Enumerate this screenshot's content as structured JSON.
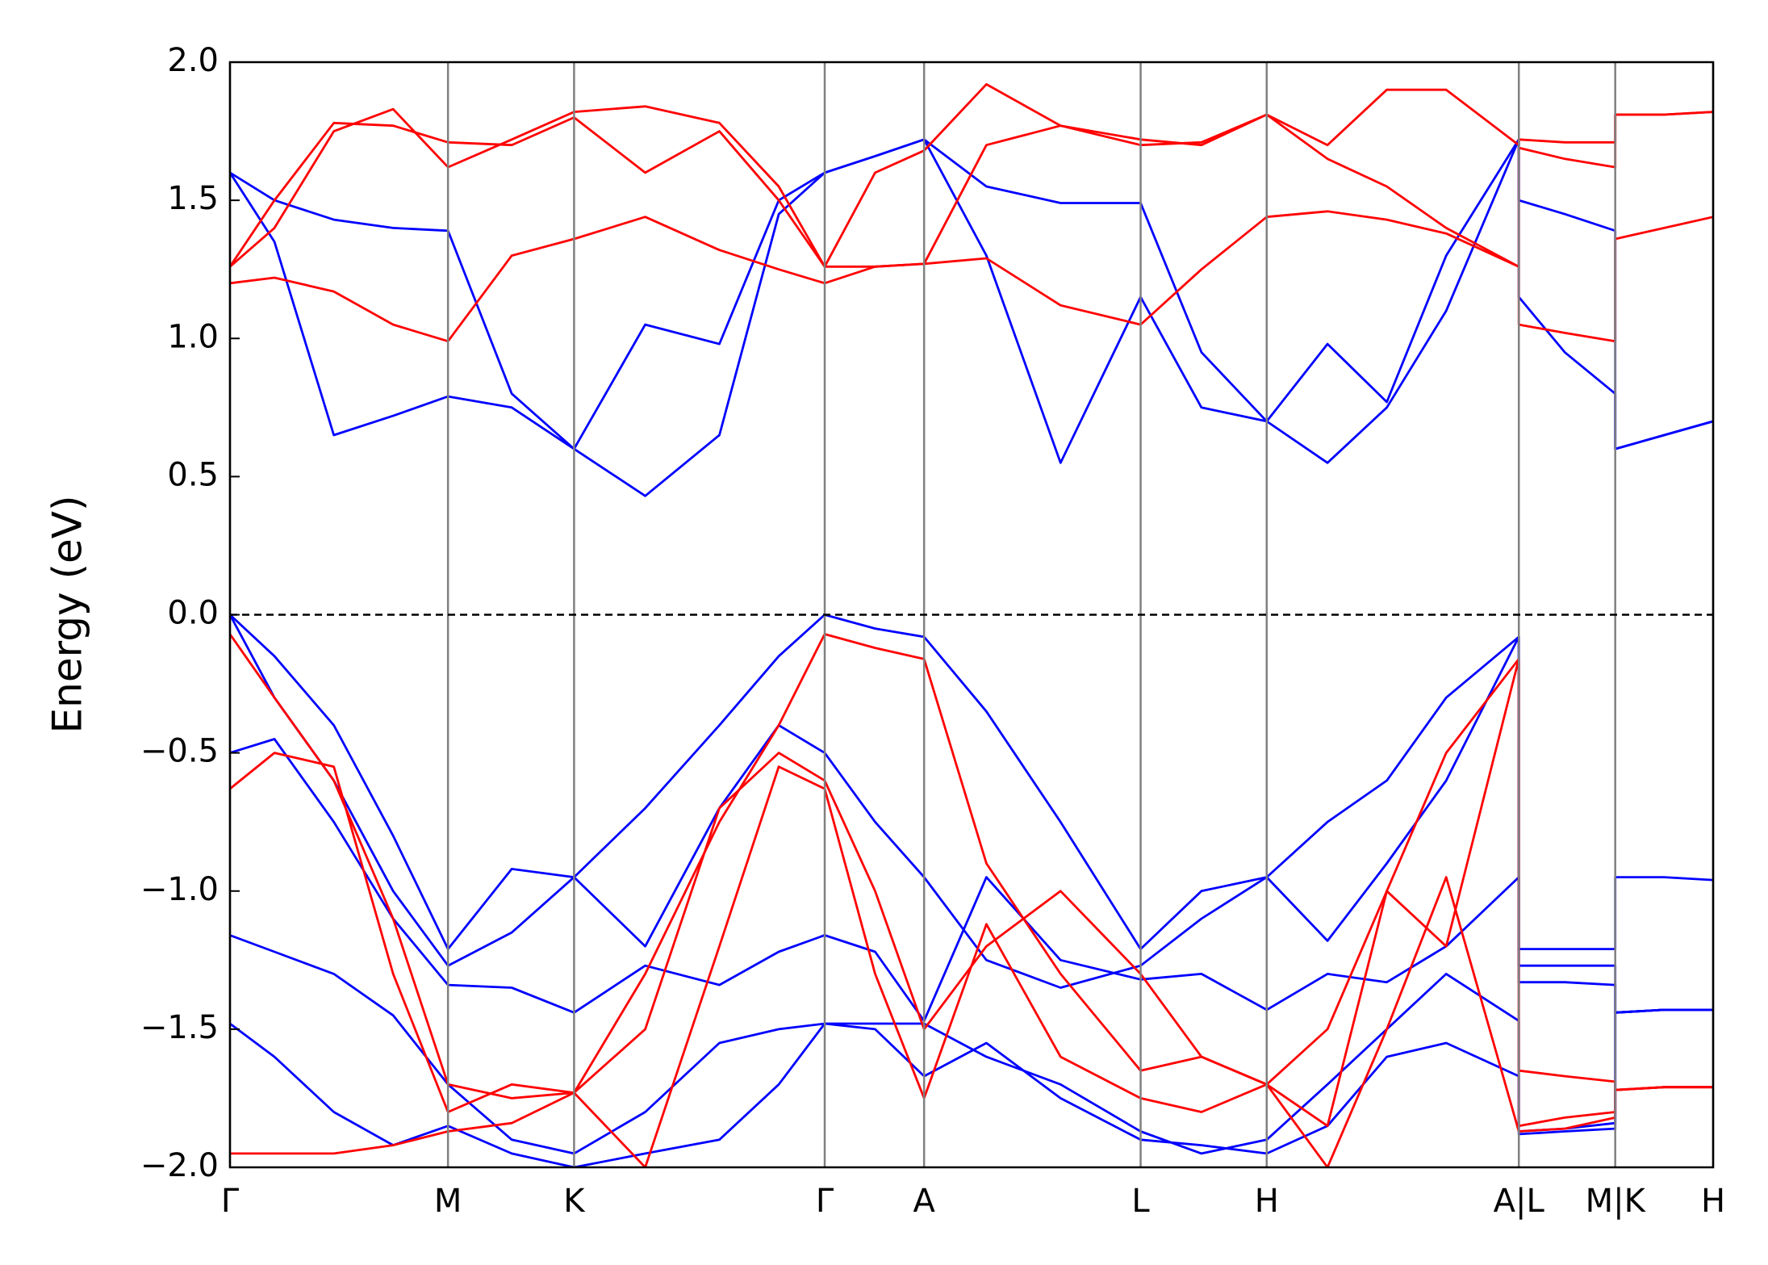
{
  "chart_data": {
    "type": "line",
    "ylabel": "Energy (eV)",
    "x": [
      0,
      0.03,
      0.07,
      0.11,
      0.147,
      0.19,
      0.232,
      0.28,
      0.33,
      0.37,
      0.401,
      0.435,
      0.468,
      0.51,
      0.56,
      0.614,
      0.655,
      0.699,
      0.74,
      0.78,
      0.82,
      0.869,
      0.869,
      0.9,
      0.934,
      0.934,
      0.967,
      1.0
    ],
    "xlim": [
      0,
      1
    ],
    "xticks": [
      {
        "value": 0,
        "label": "Γ"
      },
      {
        "value": 0.147,
        "label": "M"
      },
      {
        "value": 0.232,
        "label": "K"
      },
      {
        "value": 0.401,
        "label": "Γ"
      },
      {
        "value": 0.468,
        "label": "A"
      },
      {
        "value": 0.614,
        "label": "L"
      },
      {
        "value": 0.699,
        "label": "H"
      },
      {
        "value": 0.869,
        "label": "A|L"
      },
      {
        "value": 0.934,
        "label": "M|K"
      },
      {
        "value": 1.0,
        "label": "H"
      }
    ],
    "ylim": [
      -2,
      2
    ],
    "yticks": [
      {
        "value": -2,
        "label": "−2.0"
      },
      {
        "value": -1.5,
        "label": "−1.5"
      },
      {
        "value": -1,
        "label": "−1.0"
      },
      {
        "value": -0.5,
        "label": "−0.5"
      },
      {
        "value": 0,
        "label": "0.0"
      },
      0.5,
      {
        "value": 1,
        "label": "1.0"
      },
      1.5,
      {
        "value": 2,
        "label": "2.0"
      }
    ],
    "fermi_level": 0,
    "series": [
      {
        "color": "#0000ff",
        "values": [
          1.6,
          1.35,
          0.65,
          0.72,
          0.79,
          0.75,
          0.6,
          0.43,
          0.65,
          1.45,
          1.6,
          1.66,
          1.72,
          1.3,
          0.55,
          1.15,
          0.75,
          0.7,
          0.55,
          0.75,
          1.1,
          1.72,
          1.15,
          0.95,
          0.8,
          0.6,
          0.65,
          0.7
        ]
      },
      {
        "color": "#0000ff",
        "values": [
          1.6,
          1.5,
          1.43,
          1.4,
          1.39,
          0.8,
          0.6,
          1.05,
          0.98,
          1.5,
          1.6,
          1.66,
          1.72,
          1.55,
          1.49,
          1.49,
          0.95,
          0.7,
          0.98,
          0.77,
          1.3,
          1.72,
          1.5,
          1.45,
          1.39,
          0.6,
          0.65,
          0.7
        ]
      },
      {
        "color": "#ff0000",
        "values": [
          1.2,
          1.22,
          1.17,
          1.05,
          0.99,
          1.3,
          1.36,
          1.44,
          1.32,
          1.25,
          1.2,
          1.26,
          1.27,
          1.29,
          1.12,
          1.05,
          1.25,
          1.44,
          1.46,
          1.43,
          1.38,
          1.26,
          1.05,
          1.02,
          0.99,
          1.36,
          1.4,
          1.44
        ]
      },
      {
        "color": "#ff0000",
        "values": [
          1.26,
          1.5,
          1.78,
          1.77,
          1.71,
          1.7,
          1.8,
          1.6,
          1.75,
          1.5,
          1.26,
          1.26,
          1.27,
          1.7,
          1.77,
          1.7,
          1.71,
          1.81,
          1.65,
          1.55,
          1.4,
          1.26,
          1.69,
          1.65,
          1.62,
          1.81,
          1.81,
          1.82
        ]
      },
      {
        "color": "#ff0000",
        "values": [
          1.26,
          1.4,
          1.75,
          1.83,
          1.62,
          1.72,
          1.82,
          1.84,
          1.78,
          1.55,
          1.26,
          1.6,
          1.68,
          1.92,
          1.77,
          1.72,
          1.7,
          1.81,
          1.7,
          1.9,
          1.9,
          1.7,
          1.72,
          1.71,
          1.71,
          1.81,
          1.81,
          1.82
        ]
      },
      {
        "color": "#0000ff",
        "values": [
          0,
          -0.15,
          -0.4,
          -0.8,
          -1.21,
          -0.92,
          -0.95,
          -0.7,
          -0.4,
          -0.15,
          0,
          -0.05,
          -0.08,
          -0.35,
          -0.75,
          -1.21,
          -1.0,
          -0.95,
          -0.75,
          -0.6,
          -0.3,
          -0.08,
          -1.21,
          -1.21,
          -1.21,
          -0.95,
          -0.95,
          -0.96
        ]
      },
      {
        "color": "#0000ff",
        "values": [
          0,
          -0.3,
          -0.6,
          -1.0,
          -1.27,
          -1.15,
          -0.95,
          -1.2,
          -0.7,
          -0.4,
          -0.5,
          -0.75,
          -0.95,
          -1.25,
          -1.35,
          -1.27,
          -1.1,
          -0.95,
          -1.18,
          -0.9,
          -0.6,
          -0.08,
          -1.27,
          -1.27,
          -1.27,
          -1.44,
          -1.43,
          -1.43
        ]
      },
      {
        "color": "#0000ff",
        "values": [
          -0.5,
          -0.45,
          -0.75,
          -1.1,
          -1.34,
          -1.35,
          -1.44,
          -1.27,
          -1.34,
          -1.22,
          -1.16,
          -1.22,
          -1.47,
          -0.95,
          -1.25,
          -1.32,
          -1.3,
          -1.43,
          -1.3,
          -1.33,
          -1.2,
          -0.95,
          -1.33,
          -1.33,
          -1.34,
          -1.44,
          -1.43,
          -1.43
        ]
      },
      {
        "color": "#0000ff",
        "values": [
          -1.16,
          -1.22,
          -1.3,
          -1.45,
          -1.7,
          -1.9,
          -1.95,
          -1.8,
          -1.55,
          -1.5,
          -1.48,
          -1.48,
          -1.48,
          -1.6,
          -1.7,
          -1.87,
          -1.95,
          -1.9,
          -1.7,
          -1.5,
          -1.3,
          -1.47,
          -1.88,
          -1.87,
          -1.86,
          -1.44,
          -1.43,
          -1.43
        ]
      },
      {
        "color": "#0000ff",
        "values": [
          -1.48,
          -1.6,
          -1.8,
          -1.92,
          -1.85,
          -1.95,
          -2.0,
          -1.95,
          -1.9,
          -1.7,
          -1.48,
          -1.5,
          -1.67,
          -1.55,
          -1.75,
          -1.9,
          -1.92,
          -1.95,
          -1.85,
          -1.6,
          -1.55,
          -1.67,
          -1.87,
          -1.86,
          -1.84,
          -1.44,
          -1.43,
          -1.43
        ]
      },
      {
        "color": "#ff0000",
        "values": [
          -0.07,
          -0.3,
          -0.6,
          -1.1,
          -1.7,
          -1.75,
          -1.73,
          -1.3,
          -0.75,
          -0.4,
          -0.07,
          -0.12,
          -0.16,
          -0.9,
          -1.3,
          -1.65,
          -1.6,
          -1.7,
          -1.5,
          -1.0,
          -0.5,
          -0.16,
          -1.65,
          -1.67,
          -1.69,
          -1.72,
          -1.71,
          -1.71
        ]
      },
      {
        "color": "#ff0000",
        "values": [
          -0.63,
          -0.5,
          -0.55,
          -1.3,
          -1.8,
          -1.7,
          -1.73,
          -2.0,
          -1.2,
          -0.55,
          -0.63,
          -1.3,
          -1.75,
          -1.12,
          -1.6,
          -1.75,
          -1.8,
          -1.7,
          -1.85,
          -1.0,
          -1.2,
          -0.16,
          -1.85,
          -1.82,
          -1.8,
          -1.72,
          -1.71,
          -1.71
        ]
      },
      {
        "color": "#ff0000",
        "values": [
          -1.95,
          -1.95,
          -1.95,
          -1.92,
          -1.87,
          -1.84,
          -1.73,
          -1.5,
          -0.7,
          -0.5,
          -0.6,
          -1.0,
          -1.5,
          -1.2,
          -1.0,
          -1.3,
          -1.6,
          -1.7,
          -2.0,
          -1.5,
          -0.95,
          -1.87,
          -1.87,
          -1.86,
          -1.82,
          -1.72,
          -1.71,
          -1.71
        ]
      }
    ]
  }
}
